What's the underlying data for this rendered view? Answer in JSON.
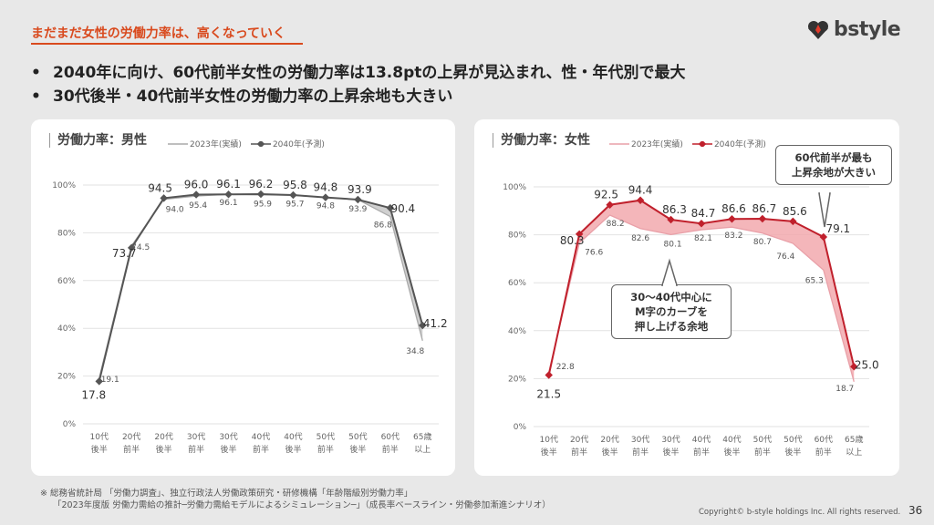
{
  "header": {
    "title": "まだまだ女性の労働力率は、高くなっていく",
    "logo_text": "bstyle"
  },
  "bullets": [
    "2040年に向け、60代前半女性の労働力率は13.8ptの上昇が見込まれ、性・年代別で最大",
    "30代後半・40代前半女性の労働力率の上昇余地も大きい"
  ],
  "callouts": {
    "female_top": [
      "60代前半が最も",
      "上昇余地が大きい"
    ],
    "female_mid": [
      "30～40代中心に",
      "M字のカーブを",
      "押し上げる余地"
    ]
  },
  "footnote": [
    "※ 総務省統計局 「労働力調査」、独立行政法人労働政策研究・研修機構「年齢階級別労働力率」",
    "「2023年度版 労働力需給の推計─労働力需給モデルによるシミュレーション─」（成長率ベースライン・労働参加漸進シナリオ）"
  ],
  "copyright": "Copyright© b-style holdings Inc. All rights reserved.",
  "page_number": "36",
  "chart_data": [
    {
      "type": "line",
      "title": "労働力率：男性",
      "categories": [
        [
          "10代",
          "後半"
        ],
        [
          "20代",
          "前半"
        ],
        [
          "20代",
          "後半"
        ],
        [
          "30代",
          "前半"
        ],
        [
          "30代",
          "後半"
        ],
        [
          "40代",
          "前半"
        ],
        [
          "40代",
          "後半"
        ],
        [
          "50代",
          "前半"
        ],
        [
          "50代",
          "後半"
        ],
        [
          "60代",
          "前半"
        ],
        [
          "65歳",
          "以上"
        ]
      ],
      "ylim": [
        0,
        100
      ],
      "yticks": [
        "0%",
        "20%",
        "40%",
        "60%",
        "80%",
        "100%"
      ],
      "series": [
        {
          "name": "2023年(実績)",
          "values": [
            19.1,
            74.5,
            94.0,
            95.4,
            96.1,
            95.9,
            95.7,
            94.8,
            93.9,
            86.8,
            34.8
          ],
          "color": "#aaaaaa"
        },
        {
          "name": "2040年(予測)",
          "values": [
            17.8,
            73.7,
            94.5,
            96.0,
            96.1,
            96.2,
            95.8,
            94.8,
            93.9,
            90.4,
            41.2
          ],
          "color": "#555555"
        }
      ],
      "fill_color": "#c8c8c8"
    },
    {
      "type": "line",
      "title": "労働力率：女性",
      "categories": [
        [
          "10代",
          "後半"
        ],
        [
          "20代",
          "前半"
        ],
        [
          "20代",
          "後半"
        ],
        [
          "30代",
          "前半"
        ],
        [
          "30代",
          "後半"
        ],
        [
          "40代",
          "前半"
        ],
        [
          "40代",
          "後半"
        ],
        [
          "50代",
          "前半"
        ],
        [
          "50代",
          "後半"
        ],
        [
          "60代",
          "前半"
        ],
        [
          "65歳",
          "以上"
        ]
      ],
      "ylim": [
        0,
        100
      ],
      "yticks": [
        "0%",
        "20%",
        "40%",
        "60%",
        "80%",
        "100%"
      ],
      "series": [
        {
          "name": "2023年(実績)",
          "values": [
            22.8,
            76.6,
            88.2,
            82.6,
            80.1,
            82.1,
            83.2,
            80.7,
            76.4,
            65.3,
            18.7
          ],
          "color": "#e9a0a8"
        },
        {
          "name": "2040年(予測)",
          "values": [
            21.5,
            80.3,
            92.5,
            94.4,
            86.3,
            84.7,
            86.6,
            86.7,
            85.6,
            79.1,
            25.0
          ],
          "color": "#c0202c"
        }
      ],
      "fill_color": "#f2a9ae"
    }
  ]
}
